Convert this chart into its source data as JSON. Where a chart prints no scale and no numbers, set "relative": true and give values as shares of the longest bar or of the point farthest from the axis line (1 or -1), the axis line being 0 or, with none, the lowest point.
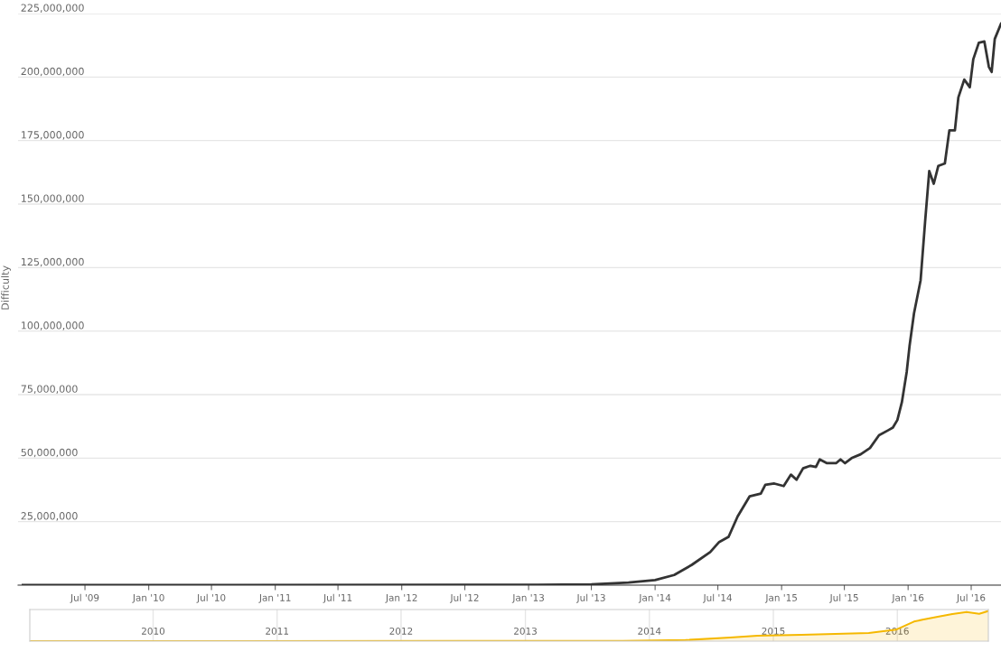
{
  "chart_data": [
    {
      "type": "line",
      "ylabel": "Difficulty",
      "grid": "y",
      "legend": false,
      "marker": "none",
      "line_style": "solid",
      "xlim": [
        "2008-12-20",
        "2016-09-25"
      ],
      "xticks": [
        {
          "value": "2009-07-01",
          "label": "Jul '09"
        },
        {
          "value": "2010-01-01",
          "label": "Jan '10"
        },
        {
          "value": "2010-07-01",
          "label": "Jul '10"
        },
        {
          "value": "2011-01-01",
          "label": "Jan '11"
        },
        {
          "value": "2011-07-01",
          "label": "Jul '11"
        },
        {
          "value": "2012-01-01",
          "label": "Jan '12"
        },
        {
          "value": "2012-07-01",
          "label": "Jul '12"
        },
        {
          "value": "2013-01-01",
          "label": "Jan '13"
        },
        {
          "value": "2013-07-01",
          "label": "Jul '13"
        },
        {
          "value": "2014-01-01",
          "label": "Jan '14"
        },
        {
          "value": "2014-07-01",
          "label": "Jul '14"
        },
        {
          "value": "2015-01-01",
          "label": "Jan '15"
        },
        {
          "value": "2015-07-01",
          "label": "Jul '15"
        },
        {
          "value": "2016-01-01",
          "label": "Jan '16"
        },
        {
          "value": "2016-07-01",
          "label": "Jul '16"
        }
      ],
      "ylim": [
        0,
        225000000
      ],
      "yticks": [
        {
          "value": 0,
          "label": null
        },
        {
          "value": 25000000,
          "label": "25,000,000"
        },
        {
          "value": 50000000,
          "label": "50,000,000"
        },
        {
          "value": 75000000,
          "label": "75,000,000"
        },
        {
          "value": 100000000,
          "label": "100,000,000"
        },
        {
          "value": 125000000,
          "label": "125,000,000"
        },
        {
          "value": 150000000,
          "label": "150,000,000"
        },
        {
          "value": 175000000,
          "label": "175,000,000"
        },
        {
          "value": 200000000,
          "label": "200,000,000"
        },
        {
          "value": 225000000,
          "label": "225,000,000"
        }
      ],
      "series": [
        {
          "color": "#333333",
          "x": [
            "2009-01-03",
            "2013-01-26",
            "2013-07-01",
            "2013-10-16",
            "2014-01-01",
            "2014-02-25",
            "2014-04-17",
            "2014-06-09",
            "2014-07-05",
            "2014-08-01",
            "2014-08-27",
            "2014-10-01",
            "2014-11-02",
            "2014-11-15",
            "2014-12-11",
            "2015-01-07",
            "2015-01-28",
            "2015-02-13",
            "2015-03-04",
            "2015-03-25",
            "2015-04-10",
            "2015-04-21",
            "2015-05-12",
            "2015-06-07",
            "2015-06-20",
            "2015-07-03",
            "2015-07-22",
            "2015-08-17",
            "2015-09-13",
            "2015-10-09",
            "2015-11-05",
            "2015-11-18",
            "2015-12-01",
            "2015-12-14",
            "2015-12-28",
            "2016-01-05",
            "2016-01-18",
            "2016-02-06",
            "2016-02-19",
            "2016-03-02",
            "2016-03-15",
            "2016-03-28",
            "2016-04-16",
            "2016-04-29",
            "2016-05-15",
            "2016-05-25",
            "2016-06-11",
            "2016-06-27",
            "2016-07-07",
            "2016-07-23",
            "2016-08-08",
            "2016-08-21",
            "2016-08-29",
            "2016-09-07",
            "2016-09-25"
          ],
          "values": [
            0,
            100000,
            300000,
            1000000,
            2000000,
            4000000,
            8000000,
            13000000,
            17000000,
            19000000,
            27000000,
            35000000,
            36000000,
            39500000,
            40000000,
            39000000,
            43500000,
            41500000,
            46000000,
            47000000,
            46500000,
            49500000,
            48000000,
            48000000,
            49500000,
            48000000,
            50000000,
            51500000,
            54000000,
            59000000,
            61000000,
            62000000,
            65000000,
            72000000,
            84000000,
            94000000,
            107000000,
            120000000,
            143000000,
            163000000,
            158000000,
            165000000,
            166000000,
            179000000,
            179000000,
            192000000,
            199000000,
            196000000,
            207000000,
            213500000,
            214000000,
            204000000,
            202000000,
            215000000,
            221000000
          ]
        }
      ]
    },
    {
      "type": "area",
      "relative": true,
      "grid": "x",
      "tick_labels": "x",
      "legend": false,
      "xlim": [
        "2009-01-03",
        "2016-09-25"
      ],
      "xticks": [
        {
          "value": "2010-01-01",
          "label": "2010"
        },
        {
          "value": "2011-01-01",
          "label": "2011"
        },
        {
          "value": "2012-01-01",
          "label": "2012"
        },
        {
          "value": "2013-01-01",
          "label": "2013"
        },
        {
          "value": "2014-01-01",
          "label": "2014"
        },
        {
          "value": "2015-01-01",
          "label": "2015"
        },
        {
          "value": "2016-01-01",
          "label": "2016"
        }
      ],
      "series": [
        {
          "color": "#f5b800",
          "x": [
            "2009-01-03",
            "2013-10-16",
            "2014-04-17",
            "2014-08-27",
            "2014-11-15",
            "2015-03-25",
            "2015-10-09",
            "2015-12-28",
            "2016-02-19",
            "2016-03-15",
            "2016-04-29",
            "2016-06-11",
            "2016-07-23",
            "2016-08-29",
            "2016-09-25"
          ],
          "values": [
            0,
            0.005,
            0.036,
            0.12,
            0.18,
            0.21,
            0.27,
            0.38,
            0.65,
            0.71,
            0.81,
            0.9,
            0.97,
            0.91,
            1
          ]
        }
      ]
    }
  ]
}
